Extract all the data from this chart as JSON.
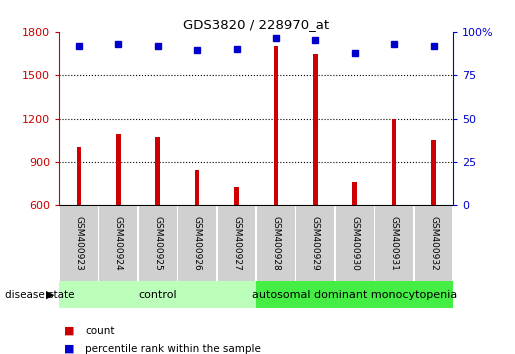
{
  "title": "GDS3820 / 228970_at",
  "samples": [
    "GSM400923",
    "GSM400924",
    "GSM400925",
    "GSM400926",
    "GSM400927",
    "GSM400928",
    "GSM400929",
    "GSM400930",
    "GSM400931",
    "GSM400932"
  ],
  "counts": [
    1005,
    1090,
    1070,
    845,
    730,
    1700,
    1650,
    760,
    1195,
    1055
  ],
  "percentiles": [
    92,
    93,
    92,
    89.5,
    90,
    96.5,
    95.5,
    88,
    93,
    92
  ],
  "ylim_left": [
    600,
    1800
  ],
  "ylim_right": [
    0,
    100
  ],
  "yticks_left": [
    600,
    900,
    1200,
    1500,
    1800
  ],
  "yticks_right": [
    0,
    25,
    50,
    75,
    100
  ],
  "bar_color": "#cc0000",
  "dot_color": "#0000cc",
  "control_label": "control",
  "disease_label": "autosomal dominant monocytopenia",
  "control_bg": "#bbffbb",
  "disease_bg": "#44ee44",
  "tick_label_bg": "#cccccc",
  "legend_count": "count",
  "legend_percentile": "percentile rank within the sample",
  "disease_state_label": "disease state",
  "left_axis_color": "#cc0000",
  "right_axis_color": "#0000cc",
  "n_control": 5,
  "n_disease": 5,
  "bar_width": 0.12,
  "dot_size": 5
}
